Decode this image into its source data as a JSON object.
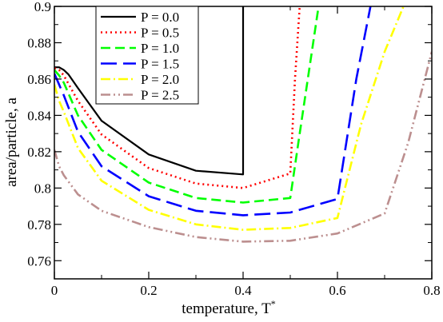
{
  "chart_data": {
    "type": "line",
    "xlabel": "temperature, T",
    "xlabel_superscript": "*",
    "ylabel": "area/particle, a",
    "xlim": [
      0,
      0.8
    ],
    "ylim": [
      0.75,
      0.9
    ],
    "xticks": [
      0,
      0.2,
      0.4,
      0.6,
      0.8
    ],
    "xtick_labels": [
      "0",
      "0.2",
      "0.4",
      "0.6",
      "0.8"
    ],
    "yticks": [
      0.76,
      0.78,
      0.8,
      0.82,
      0.84,
      0.86,
      0.88,
      0.9
    ],
    "ytick_labels": [
      "0.76",
      "0.78",
      "0.8",
      "0.82",
      "0.84",
      "0.86",
      "0.88",
      "0.9"
    ],
    "grid": false,
    "legend_position": "top-left",
    "series": [
      {
        "name": "P = 0.0",
        "color": "#000000",
        "dash": "",
        "x": [
          0,
          0.01,
          0.02,
          0.03,
          0.05,
          0.1,
          0.2,
          0.3,
          0.4,
          0.4
        ],
        "y": [
          0.8665,
          0.8665,
          0.865,
          0.8625,
          0.855,
          0.837,
          0.8185,
          0.8095,
          0.8075,
          0.9
        ]
      },
      {
        "name": "P = 0.5",
        "color": "#ff0000",
        "dash": "2,4",
        "x": [
          0,
          0.01,
          0.02,
          0.05,
          0.1,
          0.2,
          0.3,
          0.4,
          0.5,
          0.51,
          0.52
        ],
        "y": [
          0.866,
          0.865,
          0.862,
          0.848,
          0.8295,
          0.811,
          0.8025,
          0.8,
          0.808,
          0.86,
          0.9
        ]
      },
      {
        "name": "P = 1.0",
        "color": "#00ff00",
        "dash": "12,6",
        "x": [
          0,
          0.01,
          0.02,
          0.05,
          0.1,
          0.2,
          0.3,
          0.4,
          0.5,
          0.52,
          0.56
        ],
        "y": [
          0.865,
          0.862,
          0.858,
          0.84,
          0.821,
          0.803,
          0.7945,
          0.792,
          0.7945,
          0.83,
          0.9
        ]
      },
      {
        "name": "P = 1.5",
        "color": "#0000ff",
        "dash": "20,8",
        "x": [
          0,
          0.01,
          0.02,
          0.05,
          0.1,
          0.2,
          0.3,
          0.4,
          0.5,
          0.6,
          0.64,
          0.67
        ],
        "y": [
          0.863,
          0.857,
          0.851,
          0.831,
          0.812,
          0.7955,
          0.7875,
          0.785,
          0.7865,
          0.794,
          0.86,
          0.9
        ]
      },
      {
        "name": "P = 2.0",
        "color": "#ffff00",
        "dash": "12,4,2,4",
        "x": [
          0,
          0.01,
          0.02,
          0.05,
          0.1,
          0.2,
          0.3,
          0.4,
          0.5,
          0.6,
          0.65,
          0.7,
          0.74
        ],
        "y": [
          0.857,
          0.848,
          0.842,
          0.822,
          0.804,
          0.788,
          0.78,
          0.777,
          0.778,
          0.7835,
          0.835,
          0.875,
          0.9
        ]
      },
      {
        "name": "P = 2.5",
        "color": "#bc8f8f",
        "dash": "12,4,2,4,2,4",
        "x": [
          0,
          0.01,
          0.02,
          0.05,
          0.1,
          0.2,
          0.3,
          0.4,
          0.5,
          0.6,
          0.7,
          0.75,
          0.8
        ],
        "y": [
          0.821,
          0.812,
          0.807,
          0.7965,
          0.7875,
          0.7785,
          0.773,
          0.7705,
          0.771,
          0.775,
          0.786,
          0.825,
          0.875
        ]
      }
    ]
  }
}
